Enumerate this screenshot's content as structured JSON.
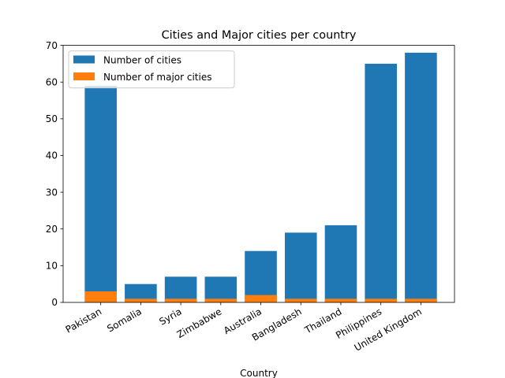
{
  "chart_data": {
    "type": "bar",
    "title": "Cities and Major cities per country",
    "xlabel": "Country",
    "ylabel": "",
    "ylim": [
      0,
      70
    ],
    "yticks": [
      0,
      10,
      20,
      30,
      40,
      50,
      60,
      70
    ],
    "categories": [
      "Pakistan",
      "Somalia",
      "Syria",
      "Zimbabwe",
      "Australia",
      "Bangladesh",
      "Thailand",
      "Philippines",
      "United Kingdom"
    ],
    "series": [
      {
        "name": "Number of cities",
        "color": "#1f77b4",
        "values": [
          59,
          5,
          7,
          7,
          14,
          19,
          21,
          65,
          68
        ]
      },
      {
        "name": "Number of major cities",
        "color": "#ff7f0e",
        "values": [
          3,
          1,
          1,
          1,
          2,
          1,
          1,
          1,
          1
        ]
      }
    ],
    "grid": false,
    "legend_position": "upper-left"
  }
}
